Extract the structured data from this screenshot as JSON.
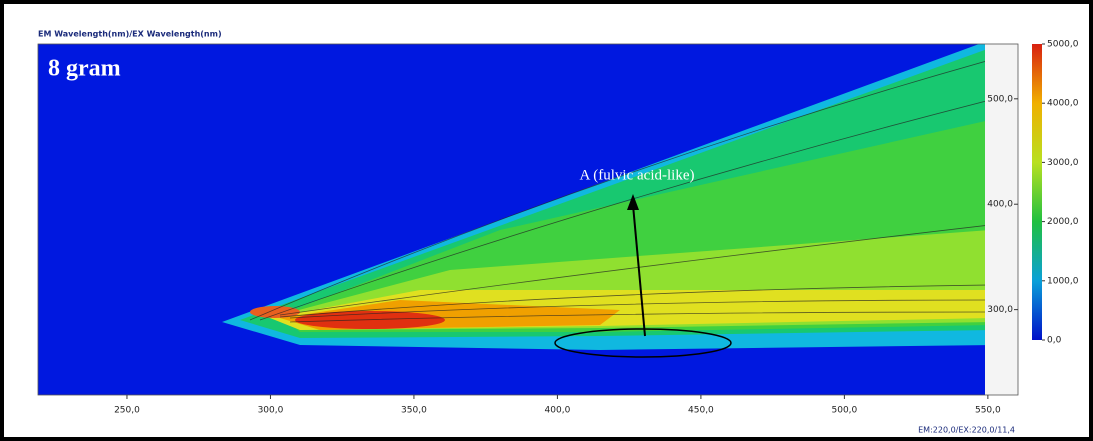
{
  "chart_data": {
    "type": "contour",
    "header": "EM Wavelength(nm)/EX Wavelength(nm)",
    "title": "8 gram",
    "annotation": "A (fulvic acid-like)",
    "footer": "EM:220,0/EX:220,0/11,4",
    "xlim": [
      219,
      549
    ],
    "xticks": [
      {
        "value": 250,
        "label": "250,0"
      },
      {
        "value": 300,
        "label": "300,0"
      },
      {
        "value": 350,
        "label": "350,0"
      },
      {
        "value": 400,
        "label": "400,0"
      },
      {
        "value": 450,
        "label": "450,0"
      },
      {
        "value": 500,
        "label": "500,0"
      },
      {
        "value": 550,
        "label": "550,0"
      }
    ],
    "y2lim": [
      219,
      552
    ],
    "y2ticks": [
      {
        "value": 300,
        "label": "300,0"
      },
      {
        "value": 400,
        "label": "400,0"
      },
      {
        "value": 500,
        "label": "500,0"
      }
    ],
    "colorbar_lim": [
      0,
      5000
    ],
    "colorbar_ticks": [
      {
        "value": 0,
        "label": "0,0"
      },
      {
        "value": 1000,
        "label": "1000,0"
      },
      {
        "value": 2000,
        "label": "2000,0"
      },
      {
        "value": 3000,
        "label": "3000,0"
      },
      {
        "value": 4000,
        "label": "4000,0"
      },
      {
        "value": 5000,
        "label": "5000,0"
      }
    ]
  }
}
